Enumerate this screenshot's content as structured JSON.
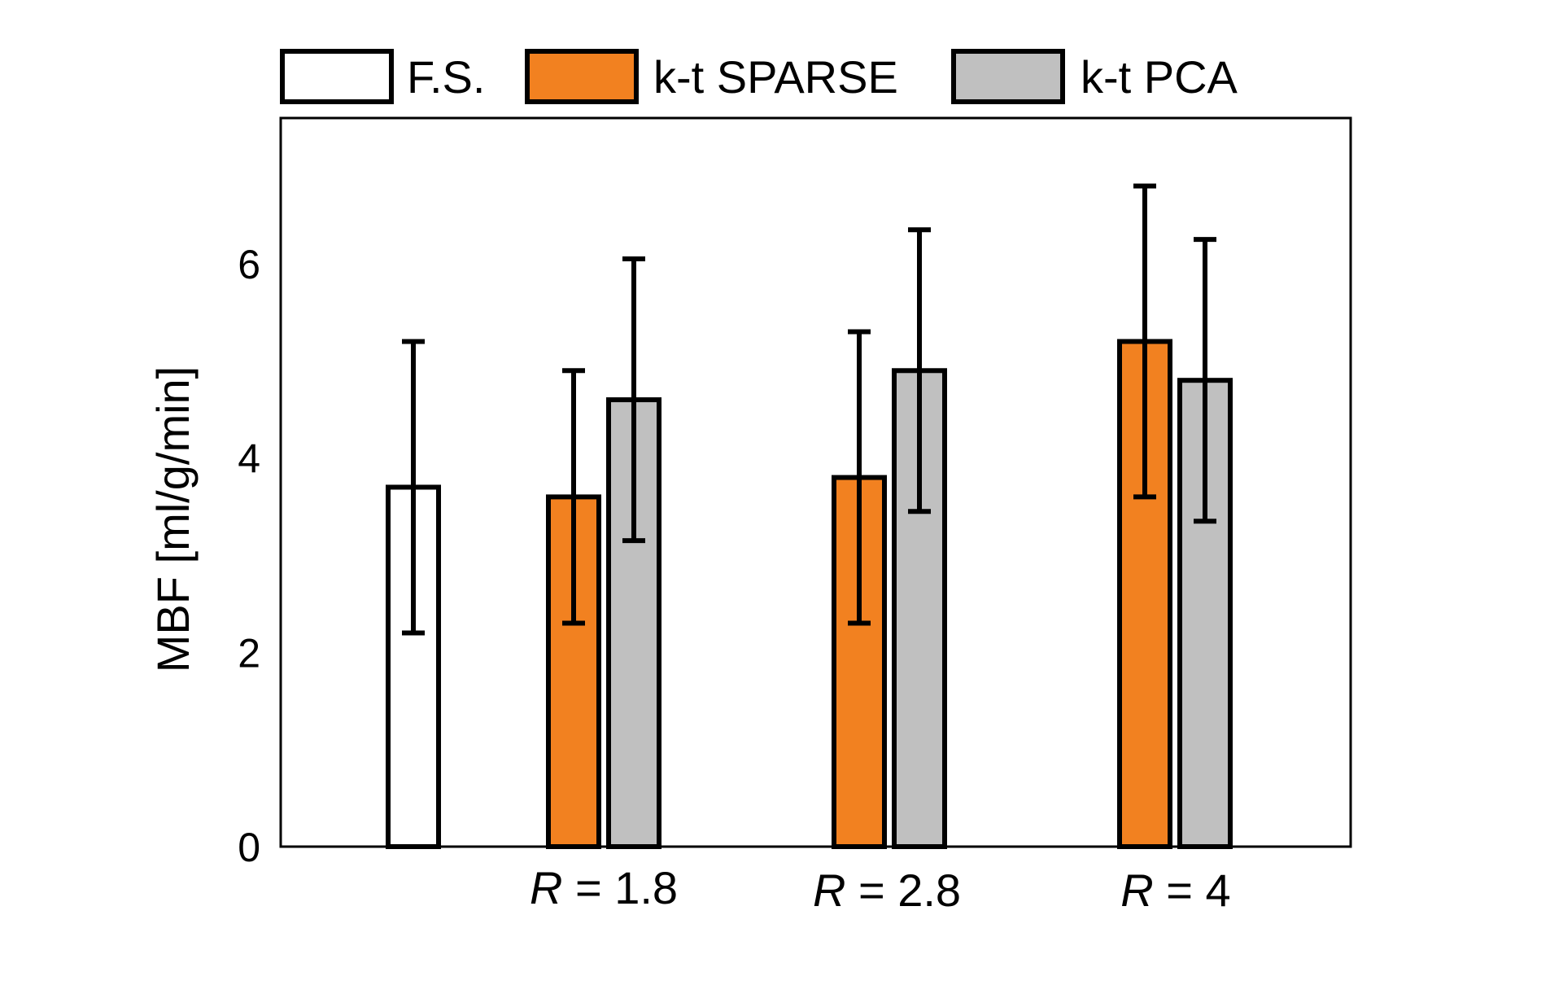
{
  "chart_data": {
    "type": "bar",
    "ylabel": "MBF [ml/g/min]",
    "ylim": [
      0,
      7.5
    ],
    "yticks": [
      0,
      2,
      4,
      6
    ],
    "legend_placement": "top",
    "groups": [
      {
        "label_italic": "",
        "label_rest": "",
        "bars": [
          {
            "series": "F.S.",
            "value": 3.7,
            "err_low": 2.2,
            "err_high": 5.2
          }
        ]
      },
      {
        "label_italic": "R",
        "label_rest": " = 1.8",
        "bars": [
          {
            "series": "k-t SPARSE",
            "value": 3.6,
            "err_low": 2.3,
            "err_high": 4.9
          },
          {
            "series": "k-t PCA",
            "value": 4.6,
            "err_low": 3.15,
            "err_high": 6.05
          }
        ]
      },
      {
        "label_italic": "R",
        "label_rest": " = 2.8",
        "bars": [
          {
            "series": "k-t SPARSE",
            "value": 3.8,
            "err_low": 2.3,
            "err_high": 5.3
          },
          {
            "series": "k-t PCA",
            "value": 4.9,
            "err_low": 3.45,
            "err_high": 6.35
          }
        ]
      },
      {
        "label_italic": "R",
        "label_rest": " = 4",
        "bars": [
          {
            "series": "k-t SPARSE",
            "value": 5.2,
            "err_low": 3.6,
            "err_high": 6.8
          },
          {
            "series": "k-t PCA",
            "value": 4.8,
            "err_low": 3.35,
            "err_high": 6.25
          }
        ]
      }
    ],
    "series": [
      {
        "name": "F.S.",
        "color": "#ffffff"
      },
      {
        "name": "k-t SPARSE",
        "color": "#f28120"
      },
      {
        "name": "k-t PCA",
        "color": "#c0c0c0"
      }
    ]
  }
}
